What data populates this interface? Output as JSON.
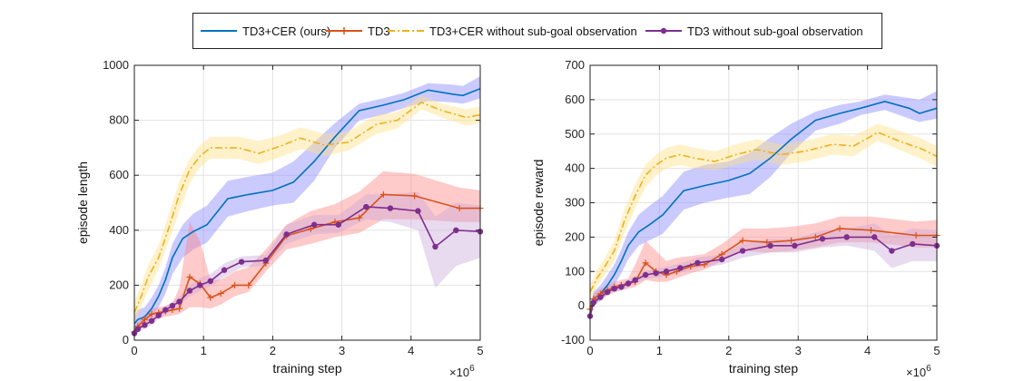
{
  "legend": {
    "items": [
      {
        "label": "TD3+CER (ours)",
        "color": "#0072BD",
        "style": "solid",
        "marker": "none"
      },
      {
        "label": "TD3",
        "color": "#D95319",
        "style": "solid",
        "marker": "plus"
      },
      {
        "label": "TD3+CER without sub-goal observation",
        "color": "#EDB120",
        "style": "dashdot",
        "marker": "none"
      },
      {
        "label": "TD3 without sub-goal observation",
        "color": "#7E2F8E",
        "style": "solid",
        "marker": "dot"
      }
    ],
    "placement": "top-center"
  },
  "chart_data": [
    {
      "type": "line",
      "xlabel": "training step",
      "ylabel": "episode length",
      "x_exponent_label": "×10^6",
      "xlim": [
        0,
        5
      ],
      "ylim": [
        0,
        1000
      ],
      "xticks": [
        0,
        1,
        2,
        3,
        4,
        5
      ],
      "yticks": [
        0,
        200,
        400,
        600,
        800,
        1000
      ],
      "grid": true,
      "series": [
        {
          "name": "TD3+CER (ours)",
          "color": "#0072BD",
          "style": "solid",
          "marker": "none",
          "band_color": "#8080ff",
          "x": [
            0,
            0.05,
            0.15,
            0.25,
            0.35,
            0.45,
            0.55,
            0.7,
            0.85,
            1.05,
            1.35,
            1.65,
            2.0,
            2.3,
            2.6,
            2.9,
            3.25,
            3.6,
            3.9,
            4.25,
            4.6,
            4.75,
            5.0
          ],
          "y": [
            60,
            75,
            85,
            115,
            160,
            220,
            300,
            370,
            395,
            420,
            515,
            530,
            545,
            575,
            650,
            740,
            835,
            855,
            875,
            910,
            895,
            890,
            915
          ],
          "lower": [
            30,
            55,
            60,
            85,
            120,
            170,
            240,
            300,
            330,
            355,
            450,
            470,
            490,
            500,
            580,
            700,
            800,
            820,
            845,
            870,
            865,
            860,
            880
          ],
          "upper": [
            90,
            110,
            120,
            155,
            200,
            265,
            350,
            420,
            460,
            490,
            580,
            595,
            610,
            650,
            720,
            790,
            860,
            880,
            900,
            935,
            930,
            925,
            960
          ]
        },
        {
          "name": "TD3",
          "color": "#D95319",
          "style": "solid",
          "marker": "plus",
          "band_color": "#ff8080",
          "x": [
            0,
            0.05,
            0.15,
            0.25,
            0.35,
            0.45,
            0.55,
            0.65,
            0.8,
            0.95,
            1.1,
            1.25,
            1.45,
            1.65,
            1.9,
            2.2,
            2.55,
            2.9,
            3.25,
            3.6,
            4.05,
            4.7,
            5.0
          ],
          "y": [
            30,
            50,
            75,
            95,
            100,
            105,
            110,
            115,
            230,
            205,
            155,
            170,
            200,
            200,
            280,
            380,
            405,
            430,
            445,
            530,
            525,
            480,
            480
          ],
          "lower": [
            20,
            35,
            55,
            75,
            80,
            85,
            90,
            95,
            120,
            120,
            115,
            130,
            160,
            175,
            250,
            330,
            350,
            375,
            390,
            440,
            440,
            430,
            430
          ],
          "upper": [
            45,
            65,
            90,
            115,
            120,
            125,
            135,
            190,
            430,
            360,
            220,
            220,
            250,
            265,
            330,
            420,
            470,
            495,
            540,
            615,
            605,
            555,
            545
          ]
        },
        {
          "name": "TD3+CER without sub-goal observation",
          "color": "#EDB120",
          "style": "dashdot",
          "marker": "none",
          "band_color": "#ffdf80",
          "x": [
            0,
            0.1,
            0.2,
            0.35,
            0.5,
            0.65,
            0.8,
            0.95,
            1.1,
            1.3,
            1.5,
            1.8,
            2.1,
            2.4,
            2.75,
            3.1,
            3.5,
            3.8,
            4.15,
            4.45,
            4.8,
            5.0
          ],
          "y": [
            100,
            160,
            230,
            300,
            410,
            530,
            620,
            670,
            700,
            700,
            700,
            680,
            705,
            735,
            710,
            720,
            785,
            800,
            865,
            835,
            810,
            820
          ],
          "lower": [
            60,
            120,
            180,
            260,
            360,
            470,
            570,
            630,
            660,
            660,
            660,
            640,
            665,
            695,
            670,
            690,
            750,
            770,
            840,
            810,
            780,
            790
          ],
          "upper": [
            140,
            200,
            275,
            345,
            460,
            580,
            660,
            710,
            740,
            740,
            740,
            725,
            745,
            775,
            750,
            760,
            820,
            830,
            890,
            860,
            840,
            850
          ]
        },
        {
          "name": "TD3 without sub-goal observation",
          "color": "#7E2F8E",
          "style": "solid",
          "marker": "dot",
          "band_color": "#c8a8d8",
          "x": [
            0,
            0.05,
            0.15,
            0.25,
            0.35,
            0.45,
            0.55,
            0.65,
            0.8,
            0.95,
            1.1,
            1.3,
            1.55,
            1.9,
            2.2,
            2.6,
            2.95,
            3.35,
            3.7,
            4.1,
            4.35,
            4.65,
            5.0
          ],
          "y": [
            25,
            40,
            55,
            70,
            90,
            110,
            125,
            140,
            180,
            200,
            215,
            255,
            285,
            290,
            385,
            420,
            420,
            485,
            480,
            470,
            340,
            400,
            395
          ],
          "lower": [
            15,
            28,
            42,
            56,
            75,
            95,
            110,
            125,
            160,
            180,
            195,
            230,
            265,
            270,
            350,
            385,
            390,
            440,
            430,
            400,
            190,
            270,
            300
          ],
          "upper": [
            35,
            52,
            68,
            84,
            105,
            125,
            140,
            160,
            200,
            225,
            240,
            280,
            305,
            310,
            420,
            455,
            455,
            530,
            530,
            540,
            450,
            500,
            490
          ]
        }
      ]
    },
    {
      "type": "line",
      "xlabel": "training step",
      "ylabel": "episode reward",
      "x_exponent_label": "×10^6",
      "xlim": [
        0,
        5
      ],
      "ylim": [
        -100,
        700
      ],
      "xticks": [
        0,
        1,
        2,
        3,
        4,
        5
      ],
      "yticks": [
        -100,
        0,
        100,
        200,
        300,
        400,
        500,
        600,
        700
      ],
      "grid": true,
      "series": [
        {
          "name": "TD3+CER (ours)",
          "color": "#0072BD",
          "style": "solid",
          "marker": "none",
          "band_color": "#8080ff",
          "x": [
            0,
            0.05,
            0.15,
            0.25,
            0.35,
            0.45,
            0.55,
            0.7,
            0.85,
            1.05,
            1.35,
            1.65,
            2.0,
            2.3,
            2.6,
            2.9,
            3.25,
            3.6,
            3.9,
            4.25,
            4.6,
            4.75,
            5.0
          ],
          "y": [
            -20,
            20,
            35,
            60,
            90,
            130,
            175,
            215,
            235,
            265,
            335,
            350,
            365,
            385,
            430,
            485,
            540,
            560,
            575,
            595,
            575,
            560,
            575
          ],
          "lower": [
            -40,
            0,
            15,
            35,
            60,
            95,
            135,
            175,
            190,
            210,
            280,
            300,
            315,
            325,
            375,
            445,
            510,
            530,
            555,
            570,
            545,
            535,
            545
          ],
          "upper": [
            0,
            40,
            60,
            90,
            120,
            165,
            215,
            265,
            290,
            320,
            390,
            410,
            420,
            445,
            490,
            530,
            565,
            585,
            595,
            615,
            605,
            600,
            625
          ]
        },
        {
          "name": "TD3",
          "color": "#D95319",
          "style": "solid",
          "marker": "plus",
          "band_color": "#ff8080",
          "x": [
            0,
            0.05,
            0.15,
            0.25,
            0.35,
            0.45,
            0.55,
            0.65,
            0.8,
            0.95,
            1.1,
            1.25,
            1.45,
            1.65,
            1.9,
            2.2,
            2.55,
            2.9,
            3.25,
            3.6,
            4.05,
            4.7,
            5.0
          ],
          "y": [
            -10,
            20,
            35,
            45,
            55,
            60,
            65,
            70,
            125,
            100,
            90,
            100,
            115,
            120,
            150,
            190,
            185,
            190,
            200,
            225,
            220,
            205,
            205
          ],
          "lower": [
            -25,
            5,
            20,
            30,
            40,
            45,
            50,
            55,
            75,
            70,
            70,
            80,
            95,
            105,
            130,
            160,
            155,
            160,
            170,
            185,
            185,
            170,
            170
          ],
          "upper": [
            5,
            35,
            50,
            60,
            70,
            75,
            80,
            120,
            190,
            160,
            130,
            140,
            145,
            150,
            180,
            225,
            225,
            230,
            240,
            260,
            260,
            245,
            250
          ]
        },
        {
          "name": "TD3+CER without sub-goal observation",
          "color": "#EDB120",
          "style": "dashdot",
          "marker": "none",
          "band_color": "#ffdf80",
          "x": [
            0,
            0.1,
            0.2,
            0.35,
            0.5,
            0.65,
            0.8,
            0.95,
            1.1,
            1.3,
            1.5,
            1.8,
            2.1,
            2.4,
            2.75,
            3.1,
            3.5,
            3.8,
            4.15,
            4.45,
            4.8,
            5.0
          ],
          "y": [
            40,
            80,
            110,
            160,
            250,
            320,
            380,
            410,
            430,
            440,
            430,
            420,
            440,
            455,
            440,
            450,
            470,
            465,
            505,
            480,
            455,
            435
          ],
          "lower": [
            20,
            55,
            85,
            130,
            215,
            285,
            345,
            380,
            400,
            410,
            400,
            395,
            410,
            425,
            410,
            420,
            440,
            435,
            480,
            455,
            425,
            405
          ],
          "upper": [
            60,
            105,
            135,
            190,
            285,
            355,
            410,
            440,
            460,
            470,
            460,
            450,
            470,
            485,
            470,
            480,
            500,
            495,
            530,
            510,
            485,
            465
          ]
        },
        {
          "name": "TD3 without sub-goal observation",
          "color": "#7E2F8E",
          "style": "solid",
          "marker": "dot",
          "band_color": "#c8a8d8",
          "x": [
            0,
            0.05,
            0.15,
            0.25,
            0.35,
            0.45,
            0.55,
            0.65,
            0.8,
            0.95,
            1.1,
            1.3,
            1.55,
            1.9,
            2.2,
            2.6,
            2.95,
            3.35,
            3.7,
            4.1,
            4.35,
            4.65,
            5.0
          ],
          "y": [
            -30,
            10,
            25,
            40,
            50,
            55,
            65,
            75,
            90,
            95,
            100,
            110,
            125,
            135,
            160,
            175,
            175,
            195,
            200,
            200,
            160,
            180,
            175
          ],
          "lower": [
            -45,
            0,
            15,
            30,
            40,
            45,
            55,
            65,
            78,
            82,
            86,
            96,
            110,
            120,
            140,
            155,
            155,
            170,
            175,
            160,
            110,
            130,
            130
          ],
          "upper": [
            -15,
            20,
            35,
            50,
            60,
            65,
            75,
            85,
            102,
            108,
            114,
            124,
            140,
            150,
            180,
            195,
            195,
            220,
            225,
            240,
            205,
            225,
            220
          ]
        }
      ]
    }
  ]
}
